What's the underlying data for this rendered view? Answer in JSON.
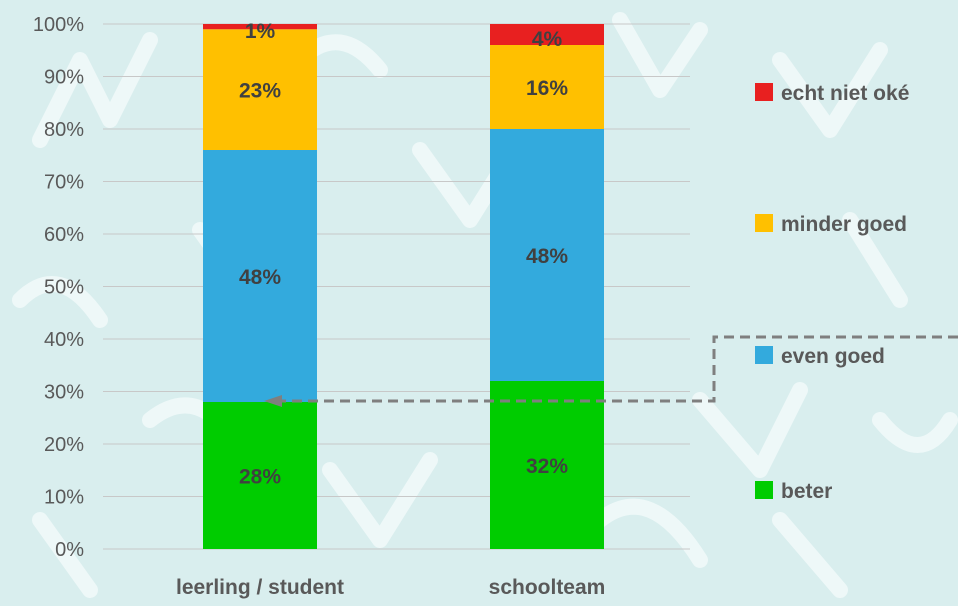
{
  "chart_data": {
    "type": "bar",
    "stacked": true,
    "categories": [
      "leerling / student",
      "schoolteam"
    ],
    "series": [
      {
        "name": "beter",
        "values": [
          28,
          32
        ],
        "labels": [
          "28%",
          "32%"
        ],
        "color": "#00cc00"
      },
      {
        "name": "even goed",
        "values": [
          48,
          48
        ],
        "labels": [
          "48%",
          "48%"
        ],
        "color": "#33aadd"
      },
      {
        "name": "minder goed",
        "values": [
          23,
          16
        ],
        "labels": [
          "23%",
          "16%"
        ],
        "color": "#ffc000"
      },
      {
        "name": "echt niet oké",
        "values": [
          1,
          4
        ],
        "labels": [
          "1%",
          "4%"
        ],
        "color": "#e82020"
      }
    ],
    "ylim": [
      0,
      100
    ],
    "yticks": [
      "0%",
      "10%",
      "20%",
      "30%",
      "40%",
      "50%",
      "60%",
      "70%",
      "80%",
      "90%",
      "100%"
    ],
    "grid": true,
    "legend": "right",
    "annotation": "dashed arrow from legend entry 'even goed' pointing to the top of 'beter' segment of 'leerling / student'",
    "background_color": "#d9eeee",
    "gridline_color": "#c8c8c8"
  }
}
